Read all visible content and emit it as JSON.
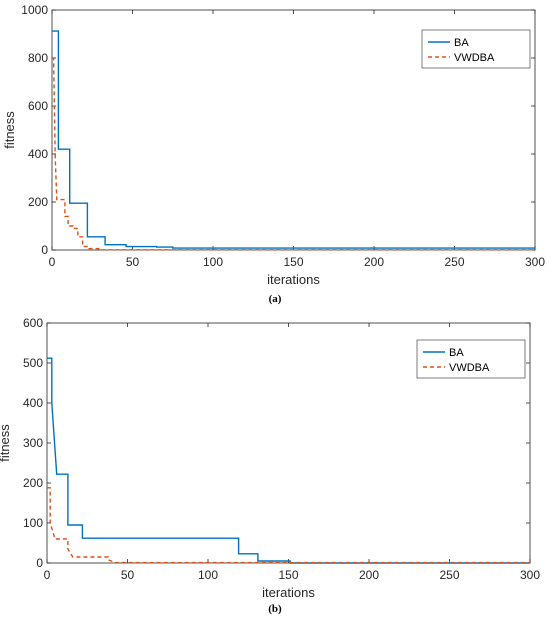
{
  "colors": {
    "BA": "#0072BD",
    "VWDBA": "#D95319",
    "axis": "#262626"
  },
  "chart_data": [
    {
      "type": "line",
      "caption": "(a)",
      "xlabel": "iterations",
      "ylabel": "fitness",
      "xlim": [
        0,
        300
      ],
      "ylim": [
        0,
        1000
      ],
      "xticks": [
        0,
        50,
        100,
        150,
        200,
        250,
        300
      ],
      "yticks": [
        0,
        200,
        400,
        600,
        800,
        1000
      ],
      "grid": false,
      "legend_position": "top-right",
      "series": [
        {
          "name": "BA",
          "style": "solid",
          "color": "#0072BD",
          "x": [
            0,
            4,
            4,
            11,
            11,
            17,
            17,
            22,
            22,
            29,
            29,
            33,
            33,
            46,
            46,
            65,
            65,
            75,
            75,
            300
          ],
          "y": [
            912,
            912,
            420,
            420,
            195,
            195,
            195,
            195,
            55,
            55,
            55,
            55,
            22,
            22,
            14,
            14,
            12,
            12,
            8,
            8
          ]
        },
        {
          "name": "VWDBA",
          "style": "dashed",
          "color": "#D95319",
          "x": [
            0,
            1,
            2,
            3,
            3,
            8,
            8,
            10,
            10,
            13,
            13,
            16,
            16,
            19,
            19,
            23,
            23,
            29,
            29,
            300
          ],
          "y": [
            800,
            800,
            390,
            210,
            210,
            210,
            140,
            140,
            100,
            100,
            90,
            90,
            55,
            55,
            15,
            15,
            6,
            6,
            1,
            1
          ]
        }
      ]
    },
    {
      "type": "line",
      "caption": "(b)",
      "xlabel": "iterations",
      "ylabel": "fitness",
      "xlim": [
        0,
        300
      ],
      "ylim": [
        0,
        600
      ],
      "xticks": [
        0,
        50,
        100,
        150,
        200,
        250,
        300
      ],
      "yticks": [
        0,
        100,
        200,
        300,
        400,
        500,
        600
      ],
      "grid": false,
      "legend_position": "top-right",
      "series": [
        {
          "name": "BA",
          "style": "solid",
          "color": "#0072BD",
          "x": [
            0,
            3,
            3,
            6,
            6,
            13,
            13,
            17,
            17,
            22,
            22,
            119,
            119,
            131,
            131,
            151,
            151,
            300
          ],
          "y": [
            512,
            512,
            400,
            222,
            222,
            222,
            95,
            95,
            95,
            95,
            62,
            62,
            23,
            23,
            5,
            5,
            0,
            0
          ]
        },
        {
          "name": "VWDBA",
          "style": "dashed",
          "color": "#D95319",
          "x": [
            0,
            2,
            2,
            5,
            5,
            13,
            13,
            16,
            16,
            38,
            38,
            42,
            42,
            300
          ],
          "y": [
            188,
            188,
            100,
            60,
            60,
            60,
            35,
            15,
            15,
            15,
            8,
            2,
            1,
            1
          ]
        }
      ]
    }
  ]
}
